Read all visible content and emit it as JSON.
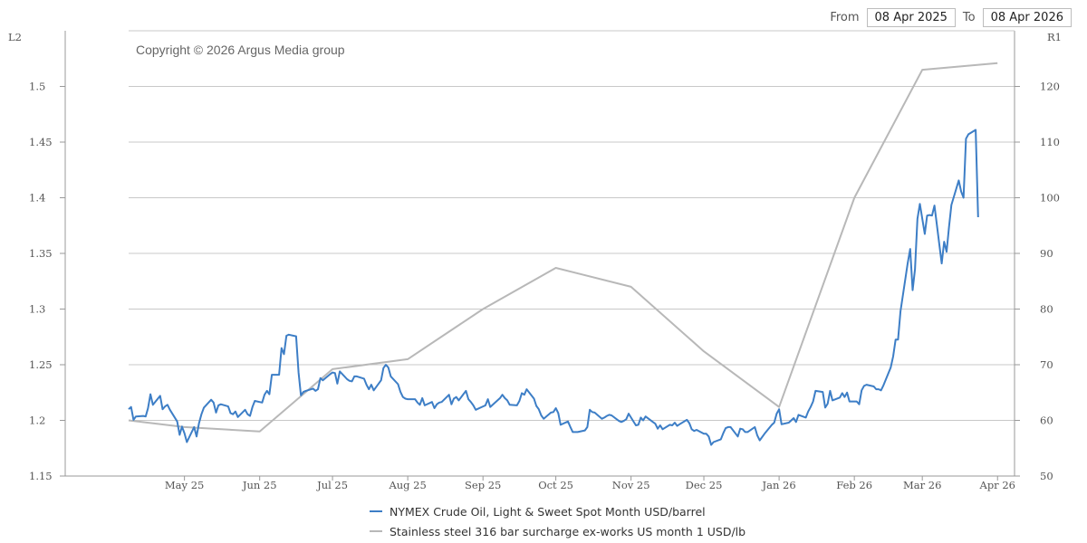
{
  "date_range": {
    "from_label": "From",
    "from_value": "08 Apr 2025",
    "to_label": "To",
    "to_value": "08 Apr 2026"
  },
  "copyright": "Copyright © 2026 Argus Media group",
  "colors": {
    "crude": "#3d7ec6",
    "steel": "#b8b8b8",
    "grid": "#c8c8c8",
    "axis": "#999999"
  },
  "chart_data": {
    "type": "line",
    "left_axis": {
      "label": "L2",
      "ticks": [
        "1.15",
        "1.2",
        "1.25",
        "1.3",
        "1.35",
        "1.4",
        "1.45",
        "1.5"
      ],
      "range": [
        1.15,
        1.55
      ]
    },
    "right_axis": {
      "label": "R1",
      "ticks": [
        "50",
        "60",
        "70",
        "80",
        "90",
        "100",
        "110",
        "120"
      ],
      "range": [
        50,
        130
      ]
    },
    "x_axis": {
      "ticks": [
        "May 25",
        "Jun 25",
        "Jul 25",
        "Aug 25",
        "Sep 25",
        "Oct 25",
        "Nov 25",
        "Dec 25",
        "Jan 26",
        "Feb 26",
        "Mar 26",
        "Apr 26"
      ],
      "tick_dates": [
        "2025-05-01",
        "2025-06-01",
        "2025-07-01",
        "2025-08-01",
        "2025-09-01",
        "2025-10-01",
        "2025-11-01",
        "2025-12-01",
        "2026-01-01",
        "2026-02-01",
        "2026-03-01",
        "2026-04-01"
      ],
      "range": [
        "2025-04-08",
        "2026-04-08"
      ]
    },
    "grid": true,
    "legend_position": "bottom-center",
    "series": [
      {
        "name": "NYMEX Crude Oil, Light & Sweet Spot Month USD/barrel",
        "axis": "right",
        "points": [
          [
            "2025-04-08",
            62.0
          ],
          [
            "2025-04-09",
            62.4
          ],
          [
            "2025-04-10",
            60.1
          ],
          [
            "2025-04-11",
            60.7
          ],
          [
            "2025-04-14",
            60.8
          ],
          [
            "2025-04-15",
            60.7
          ],
          [
            "2025-04-16",
            62.2
          ],
          [
            "2025-04-17",
            64.7
          ],
          [
            "2025-04-18",
            62.8
          ],
          [
            "2025-04-21",
            64.4
          ],
          [
            "2025-04-22",
            62.0
          ],
          [
            "2025-04-23",
            62.5
          ],
          [
            "2025-04-24",
            62.8
          ],
          [
            "2025-04-25",
            61.9
          ],
          [
            "2025-04-28",
            59.8
          ],
          [
            "2025-04-29",
            57.4
          ],
          [
            "2025-04-30",
            58.9
          ],
          [
            "2025-05-01",
            57.7
          ],
          [
            "2025-05-02",
            56.1
          ],
          [
            "2025-05-05",
            58.8
          ],
          [
            "2025-05-06",
            57.1
          ],
          [
            "2025-05-07",
            59.5
          ],
          [
            "2025-05-08",
            61.1
          ],
          [
            "2025-05-09",
            62.3
          ],
          [
            "2025-05-12",
            63.7
          ],
          [
            "2025-05-13",
            63.2
          ],
          [
            "2025-05-14",
            61.4
          ],
          [
            "2025-05-15",
            62.7
          ],
          [
            "2025-05-16",
            62.9
          ],
          [
            "2025-05-19",
            62.5
          ],
          [
            "2025-05-20",
            61.3
          ],
          [
            "2025-05-21",
            61.1
          ],
          [
            "2025-05-22",
            61.6
          ],
          [
            "2025-05-23",
            60.6
          ],
          [
            "2025-05-26",
            61.9
          ],
          [
            "2025-05-27",
            61.1
          ],
          [
            "2025-05-28",
            60.8
          ],
          [
            "2025-05-29",
            62.4
          ],
          [
            "2025-05-30",
            63.5
          ],
          [
            "2025-06-02",
            63.2
          ],
          [
            "2025-06-03",
            64.6
          ],
          [
            "2025-06-04",
            65.3
          ],
          [
            "2025-06-05",
            64.7
          ],
          [
            "2025-06-06",
            68.2
          ],
          [
            "2025-06-09",
            68.2
          ],
          [
            "2025-06-10",
            73.0
          ],
          [
            "2025-06-11",
            71.9
          ],
          [
            "2025-06-12",
            75.2
          ],
          [
            "2025-06-13",
            75.4
          ],
          [
            "2025-06-16",
            75.1
          ],
          [
            "2025-06-17",
            68.6
          ],
          [
            "2025-06-18",
            64.5
          ],
          [
            "2025-06-19",
            65.1
          ],
          [
            "2025-06-20",
            65.3
          ],
          [
            "2025-06-23",
            65.7
          ],
          [
            "2025-06-24",
            65.3
          ],
          [
            "2025-06-25",
            65.6
          ],
          [
            "2025-06-26",
            67.6
          ],
          [
            "2025-06-27",
            67.2
          ],
          [
            "2025-06-30",
            68.3
          ],
          [
            "2025-07-01",
            68.6
          ],
          [
            "2025-07-02",
            68.5
          ],
          [
            "2025-07-03",
            66.6
          ],
          [
            "2025-07-04",
            68.8
          ],
          [
            "2025-07-07",
            67.4
          ],
          [
            "2025-07-08",
            67.1
          ],
          [
            "2025-07-09",
            67.0
          ],
          [
            "2025-07-10",
            67.9
          ],
          [
            "2025-07-11",
            67.9
          ],
          [
            "2025-07-14",
            67.5
          ],
          [
            "2025-07-15",
            66.4
          ],
          [
            "2025-07-16",
            65.6
          ],
          [
            "2025-07-17",
            66.4
          ],
          [
            "2025-07-18",
            65.4
          ],
          [
            "2025-07-21",
            67.2
          ],
          [
            "2025-07-22",
            69.4
          ],
          [
            "2025-07-23",
            70.0
          ],
          [
            "2025-07-24",
            69.5
          ],
          [
            "2025-07-25",
            67.9
          ],
          [
            "2025-07-28",
            66.5
          ],
          [
            "2025-07-29",
            65.1
          ],
          [
            "2025-07-30",
            64.2
          ],
          [
            "2025-07-31",
            63.9
          ],
          [
            "2025-08-01",
            63.8
          ],
          [
            "2025-08-04",
            63.8
          ],
          [
            "2025-08-05",
            63.2
          ],
          [
            "2025-08-06",
            62.8
          ],
          [
            "2025-08-07",
            64.0
          ],
          [
            "2025-08-08",
            62.7
          ],
          [
            "2025-08-11",
            63.3
          ],
          [
            "2025-08-12",
            62.2
          ],
          [
            "2025-08-13",
            62.9
          ],
          [
            "2025-08-14",
            63.2
          ],
          [
            "2025-08-15",
            63.3
          ],
          [
            "2025-08-18",
            64.6
          ],
          [
            "2025-08-19",
            62.9
          ],
          [
            "2025-08-20",
            63.9
          ],
          [
            "2025-08-21",
            64.2
          ],
          [
            "2025-08-22",
            63.6
          ],
          [
            "2025-08-25",
            65.3
          ],
          [
            "2025-08-26",
            63.8
          ],
          [
            "2025-08-27",
            63.3
          ],
          [
            "2025-08-28",
            62.7
          ],
          [
            "2025-08-29",
            61.9
          ],
          [
            "2025-09-01",
            62.5
          ],
          [
            "2025-09-02",
            62.7
          ],
          [
            "2025-09-03",
            63.8
          ],
          [
            "2025-09-04",
            62.4
          ],
          [
            "2025-09-05",
            62.8
          ],
          [
            "2025-09-08",
            64.0
          ],
          [
            "2025-09-09",
            64.6
          ],
          [
            "2025-09-10",
            64.0
          ],
          [
            "2025-09-11",
            63.6
          ],
          [
            "2025-09-12",
            62.8
          ],
          [
            "2025-09-15",
            62.7
          ],
          [
            "2025-09-16",
            63.5
          ],
          [
            "2025-09-17",
            64.9
          ],
          [
            "2025-09-18",
            64.6
          ],
          [
            "2025-09-19",
            65.6
          ],
          [
            "2025-09-22",
            63.9
          ],
          [
            "2025-09-23",
            62.6
          ],
          [
            "2025-09-24",
            62.0
          ],
          [
            "2025-09-25",
            60.9
          ],
          [
            "2025-09-26",
            60.3
          ],
          [
            "2025-09-29",
            61.4
          ],
          [
            "2025-09-30",
            61.5
          ],
          [
            "2025-10-01",
            62.2
          ],
          [
            "2025-10-02",
            61.3
          ],
          [
            "2025-10-03",
            59.2
          ],
          [
            "2025-10-06",
            59.8
          ],
          [
            "2025-10-07",
            58.8
          ],
          [
            "2025-10-08",
            57.9
          ],
          [
            "2025-10-09",
            57.9
          ],
          [
            "2025-10-10",
            57.9
          ],
          [
            "2025-10-13",
            58.2
          ],
          [
            "2025-10-14",
            58.8
          ],
          [
            "2025-10-15",
            61.9
          ],
          [
            "2025-10-16",
            61.5
          ],
          [
            "2025-10-17",
            61.4
          ],
          [
            "2025-10-20",
            60.3
          ],
          [
            "2025-10-21",
            60.5
          ],
          [
            "2025-10-22",
            60.8
          ],
          [
            "2025-10-23",
            61.0
          ],
          [
            "2025-10-24",
            60.9
          ],
          [
            "2025-10-27",
            59.9
          ],
          [
            "2025-10-28",
            59.7
          ],
          [
            "2025-10-29",
            59.9
          ],
          [
            "2025-10-30",
            60.2
          ],
          [
            "2025-10-31",
            61.2
          ],
          [
            "2025-11-03",
            59.1
          ],
          [
            "2025-11-04",
            59.2
          ],
          [
            "2025-11-05",
            60.5
          ],
          [
            "2025-11-06",
            60.0
          ],
          [
            "2025-11-07",
            60.7
          ],
          [
            "2025-11-10",
            59.7
          ],
          [
            "2025-11-11",
            59.4
          ],
          [
            "2025-11-12",
            58.5
          ],
          [
            "2025-11-13",
            59.1
          ],
          [
            "2025-11-14",
            58.4
          ],
          [
            "2025-11-17",
            59.2
          ],
          [
            "2025-11-18",
            59.1
          ],
          [
            "2025-11-19",
            59.6
          ],
          [
            "2025-11-20",
            59.0
          ],
          [
            "2025-11-21",
            59.3
          ],
          [
            "2025-11-24",
            60.1
          ],
          [
            "2025-11-25",
            59.5
          ],
          [
            "2025-11-26",
            58.4
          ],
          [
            "2025-11-27",
            58.1
          ],
          [
            "2025-11-28",
            58.3
          ],
          [
            "2025-12-01",
            57.6
          ],
          [
            "2025-12-02",
            57.6
          ],
          [
            "2025-12-03",
            57.1
          ],
          [
            "2025-12-04",
            55.6
          ],
          [
            "2025-12-05",
            56.1
          ],
          [
            "2025-12-08",
            56.6
          ],
          [
            "2025-12-09",
            57.7
          ],
          [
            "2025-12-10",
            58.6
          ],
          [
            "2025-12-11",
            58.8
          ],
          [
            "2025-12-12",
            58.8
          ],
          [
            "2025-12-15",
            57.1
          ],
          [
            "2025-12-16",
            58.5
          ],
          [
            "2025-12-17",
            58.4
          ],
          [
            "2025-12-18",
            57.9
          ],
          [
            "2025-12-19",
            57.9
          ],
          [
            "2025-12-22",
            58.8
          ],
          [
            "2025-12-23",
            57.3
          ],
          [
            "2025-12-24",
            56.4
          ],
          [
            "2025-12-26",
            57.6
          ],
          [
            "2025-12-29",
            59.2
          ],
          [
            "2025-12-30",
            59.6
          ],
          [
            "2025-12-31",
            61.2
          ],
          [
            "2026-01-01",
            62.0
          ],
          [
            "2026-01-02",
            59.3
          ],
          [
            "2026-01-05",
            59.6
          ],
          [
            "2026-01-06",
            60.0
          ],
          [
            "2026-01-07",
            60.4
          ],
          [
            "2026-01-08",
            59.7
          ],
          [
            "2026-01-09",
            61.0
          ],
          [
            "2026-01-12",
            60.5
          ],
          [
            "2026-01-13",
            61.6
          ],
          [
            "2026-01-14",
            62.4
          ],
          [
            "2026-01-15",
            63.4
          ],
          [
            "2026-01-16",
            65.3
          ],
          [
            "2026-01-19",
            65.1
          ],
          [
            "2026-01-20",
            62.3
          ],
          [
            "2026-01-21",
            63.0
          ],
          [
            "2026-01-22",
            65.3
          ],
          [
            "2026-01-23",
            63.6
          ],
          [
            "2026-01-26",
            64.1
          ],
          [
            "2026-01-27",
            64.9
          ],
          [
            "2026-01-28",
            64.2
          ],
          [
            "2026-01-29",
            65.0
          ],
          [
            "2026-01-30",
            63.4
          ],
          [
            "2026-02-02",
            63.4
          ],
          [
            "2026-02-03",
            62.9
          ],
          [
            "2026-02-04",
            65.4
          ],
          [
            "2026-02-05",
            66.2
          ],
          [
            "2026-02-06",
            66.4
          ],
          [
            "2026-02-09",
            66.1
          ],
          [
            "2026-02-10",
            65.6
          ],
          [
            "2026-02-11",
            65.6
          ],
          [
            "2026-02-12",
            65.4
          ],
          [
            "2026-02-13",
            66.3
          ],
          [
            "2026-02-16",
            69.5
          ],
          [
            "2026-02-17",
            71.5
          ],
          [
            "2026-02-18",
            74.5
          ],
          [
            "2026-02-19",
            74.5
          ],
          [
            "2026-02-20",
            79.6
          ],
          [
            "2026-02-23",
            88.3
          ],
          [
            "2026-02-24",
            90.8
          ],
          [
            "2026-02-25",
            83.4
          ],
          [
            "2026-02-26",
            87.1
          ],
          [
            "2026-02-27",
            96.2
          ],
          [
            "2026-02-28",
            98.9
          ],
          [
            "2026-03-02",
            93.5
          ],
          [
            "2026-03-03",
            96.8
          ],
          [
            "2026-03-04",
            96.9
          ],
          [
            "2026-03-05",
            96.8
          ],
          [
            "2026-03-06",
            98.6
          ],
          [
            "2026-03-09",
            88.2
          ],
          [
            "2026-03-10",
            92.1
          ],
          [
            "2026-03-11",
            90.3
          ],
          [
            "2026-03-12",
            94.8
          ],
          [
            "2026-03-13",
            98.7
          ],
          [
            "2026-03-16",
            103.1
          ],
          [
            "2026-03-17",
            101.1
          ],
          [
            "2026-03-18",
            100.0
          ],
          [
            "2026-03-19",
            110.6
          ],
          [
            "2026-03-20",
            111.4
          ],
          [
            "2026-03-23",
            112.2
          ],
          [
            "2026-03-24",
            96.5
          ]
        ]
      },
      {
        "name": "Stainless steel 316 bar surcharge ex-works US month 1 USD/lb",
        "axis": "left",
        "points": [
          [
            "2025-04-08",
            1.2
          ],
          [
            "2025-05-01",
            1.194
          ],
          [
            "2025-06-01",
            1.19
          ],
          [
            "2025-07-01",
            1.246
          ],
          [
            "2025-08-01",
            1.255
          ],
          [
            "2025-09-01",
            1.3
          ],
          [
            "2025-10-01",
            1.337
          ],
          [
            "2025-11-01",
            1.32
          ],
          [
            "2025-12-01",
            1.262
          ],
          [
            "2026-01-01",
            1.212
          ],
          [
            "2026-02-01",
            1.4
          ],
          [
            "2026-03-01",
            1.515
          ],
          [
            "2026-04-01",
            1.521
          ]
        ]
      }
    ]
  },
  "legend": {
    "crude_label": "NYMEX Crude Oil, Light & Sweet Spot Month USD/barrel",
    "steel_label": "Stainless steel 316 bar surcharge ex-works US month 1 USD/lb"
  }
}
